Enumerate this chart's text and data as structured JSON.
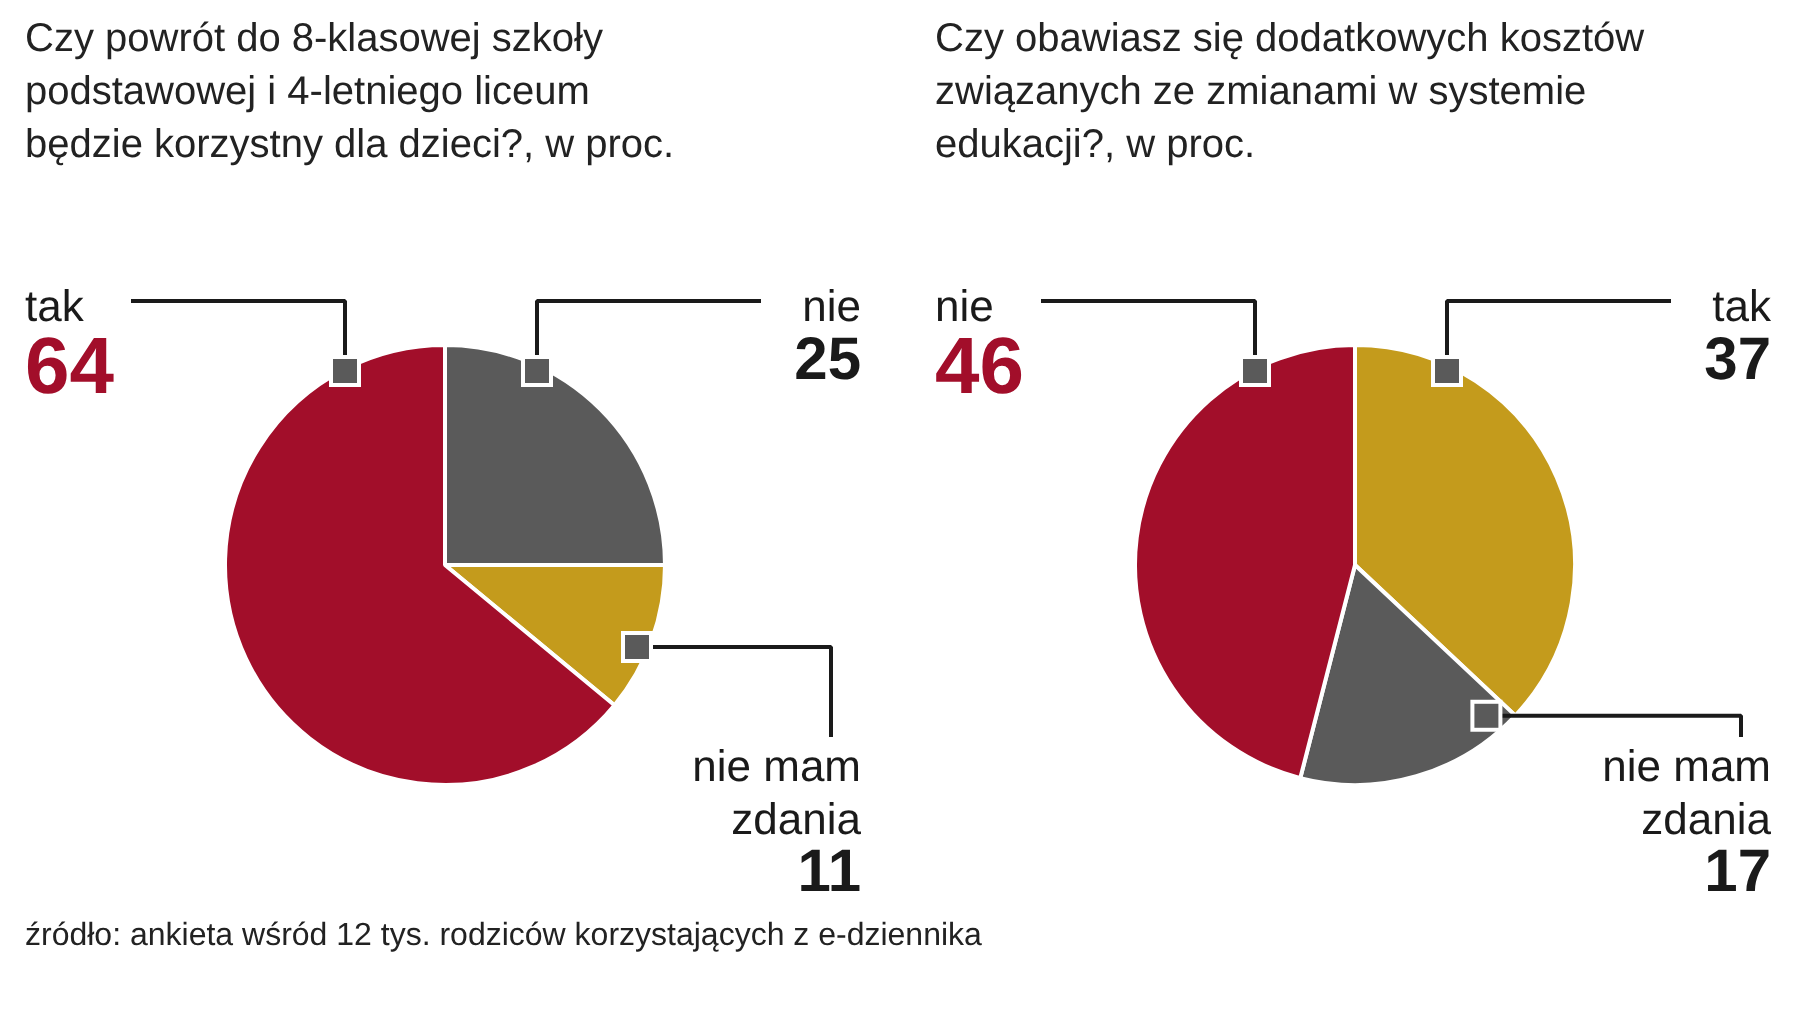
{
  "chart_data": [
    {
      "type": "pie",
      "title": "Czy powrót do 8-klasowej szkoły\npodstawowej i 4-letniego liceum\nbędzie korzystny dla dzieci?, w proc.",
      "categories": [
        "nie",
        "nie mam\nzdania",
        "tak"
      ],
      "values": [
        25,
        11,
        64
      ],
      "colors": [
        "#5a5a5a",
        "#c49b1c",
        "#a20e2a"
      ],
      "data_labels": true,
      "annotations": [
        "źródło: ankieta wśród 12 tys. rodziców korzystających z e-dziennika"
      ]
    },
    {
      "type": "pie",
      "title": "Czy obawiasz się dodatkowych kosztów\nzwiązanych ze zmianami w systemie\nedukacji?, w proc.",
      "categories": [
        "tak",
        "nie mam\nzdania",
        "nie"
      ],
      "values": [
        37,
        17,
        46
      ],
      "colors": [
        "#c49b1c",
        "#5a5a5a",
        "#a20e2a"
      ],
      "data_labels": true
    }
  ]
}
